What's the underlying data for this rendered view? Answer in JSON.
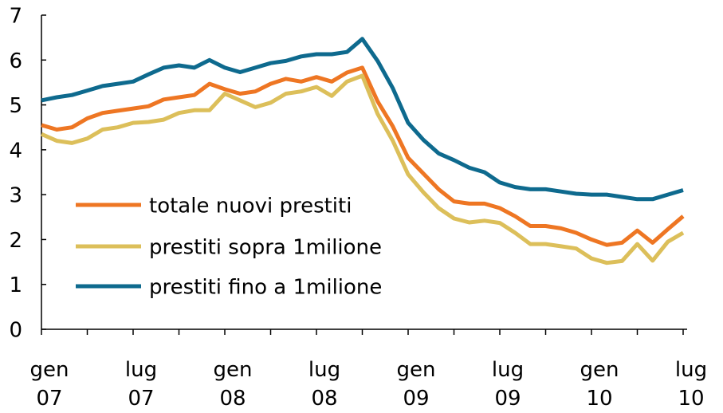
{
  "chart_data": {
    "type": "line",
    "categories": [
      "gen\n07",
      null,
      null,
      null,
      null,
      null,
      "lug\n07",
      null,
      null,
      null,
      null,
      null,
      "gen\n08",
      null,
      null,
      null,
      null,
      null,
      "lug\n08",
      null,
      null,
      null,
      null,
      null,
      "gen\n09",
      null,
      null,
      null,
      null,
      null,
      "lug\n09",
      null,
      null,
      null,
      null,
      null,
      "gen\n10",
      null,
      null,
      null,
      null,
      null,
      "lug\n10"
    ],
    "series": [
      {
        "name": "totale nuovi prestiti",
        "color": "#ee7623",
        "values": [
          4.55,
          4.45,
          4.5,
          4.7,
          4.82,
          4.87,
          4.92,
          4.97,
          5.12,
          5.17,
          5.22,
          5.47,
          5.35,
          5.25,
          5.3,
          5.47,
          5.58,
          5.52,
          5.62,
          5.52,
          5.72,
          5.83,
          5.08,
          4.52,
          3.82,
          3.47,
          3.12,
          2.85,
          2.8,
          2.8,
          2.7,
          2.52,
          2.3,
          2.3,
          2.25,
          2.15,
          2.0,
          1.88,
          1.93,
          2.2,
          1.93,
          2.23,
          2.52
        ]
      },
      {
        "name": "prestiti sopra 1milione",
        "color": "#dcbf5a",
        "values": [
          4.35,
          4.2,
          4.15,
          4.25,
          4.45,
          4.5,
          4.6,
          4.62,
          4.67,
          4.82,
          4.88,
          4.88,
          5.25,
          5.1,
          4.95,
          5.05,
          5.25,
          5.3,
          5.4,
          5.2,
          5.52,
          5.65,
          4.8,
          4.2,
          3.45,
          3.05,
          2.7,
          2.47,
          2.38,
          2.42,
          2.37,
          2.15,
          1.9,
          1.9,
          1.85,
          1.8,
          1.58,
          1.48,
          1.52,
          1.9,
          1.53,
          1.95,
          2.15
        ]
      },
      {
        "name": "prestiti fino a 1milione",
        "color": "#0e6a8e",
        "values": [
          5.1,
          5.17,
          5.22,
          5.32,
          5.42,
          5.47,
          5.52,
          5.68,
          5.83,
          5.88,
          5.83,
          6.0,
          5.83,
          5.73,
          5.83,
          5.93,
          5.98,
          6.08,
          6.13,
          6.13,
          6.18,
          6.47,
          5.98,
          5.37,
          4.6,
          4.22,
          3.92,
          3.77,
          3.6,
          3.5,
          3.27,
          3.17,
          3.12,
          3.12,
          3.07,
          3.02,
          3.0,
          3.0,
          2.95,
          2.9,
          2.9,
          3.0,
          3.1
        ]
      }
    ],
    "ylim": [
      0,
      7
    ],
    "yticks": [
      0,
      1,
      2,
      3,
      4,
      5,
      6,
      7
    ],
    "grid": false,
    "legend": "left"
  }
}
